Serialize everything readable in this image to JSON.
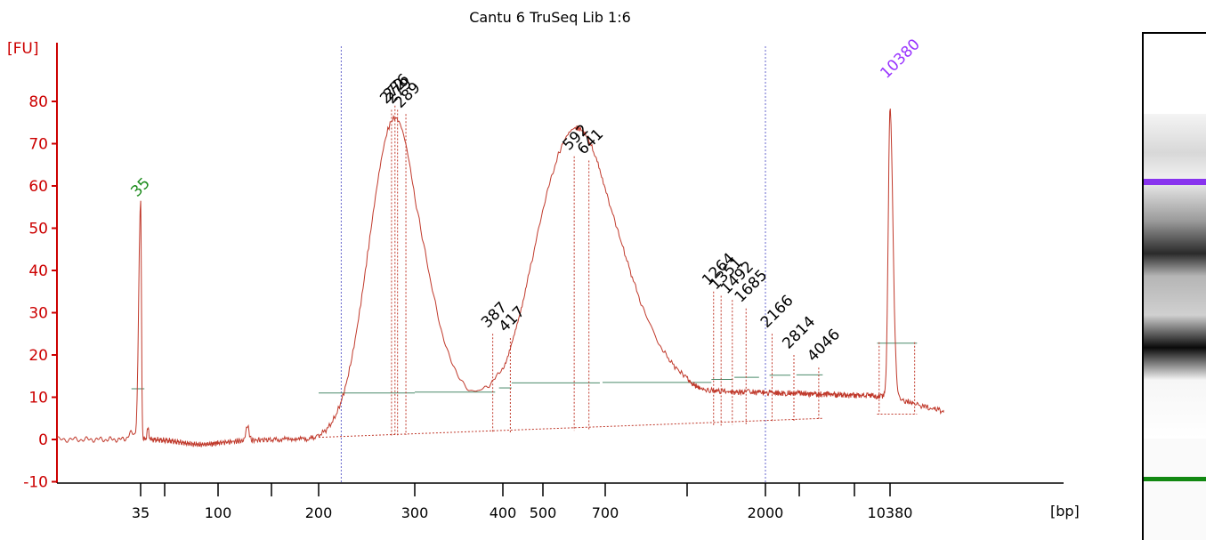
{
  "chart_data": {
    "type": "line",
    "title": "Cantu 6 TruSeq Lib 1:6",
    "ylabel": "[FU]",
    "xlabel": "[bp]",
    "ylim": [
      -10,
      90
    ],
    "y_ticks": [
      -10,
      0,
      10,
      20,
      30,
      40,
      50,
      60,
      70,
      80
    ],
    "x_tick_labels": [
      "35",
      "100",
      "200",
      "300",
      "400",
      "500",
      "700",
      "2000",
      "10380"
    ],
    "x_axis": "bp (nonlinear, ladder-calibrated)",
    "markers": [
      {
        "label": "35",
        "bp": 35,
        "fu": 56,
        "color": "#1a8a1a"
      },
      {
        "label": "10380",
        "bp": 10380,
        "fu": 84,
        "color": "#9933ff"
      }
    ],
    "peaks": [
      {
        "label": "272",
        "bp": 272,
        "fu": 78
      },
      {
        "label": "276",
        "bp": 276,
        "fu": 79
      },
      {
        "label": "279",
        "bp": 279,
        "fu": 78
      },
      {
        "label": "289",
        "bp": 289,
        "fu": 77
      },
      {
        "label": "387",
        "bp": 387,
        "fu": 25
      },
      {
        "label": "417",
        "bp": 417,
        "fu": 24
      },
      {
        "label": "592",
        "bp": 592,
        "fu": 67
      },
      {
        "label": "641",
        "bp": 641,
        "fu": 66
      },
      {
        "label": "1264",
        "bp": 1264,
        "fu": 35
      },
      {
        "label": "1351",
        "bp": 1351,
        "fu": 34
      },
      {
        "label": "1492",
        "bp": 1492,
        "fu": 33
      },
      {
        "label": "1685",
        "bp": 1685,
        "fu": 31
      },
      {
        "label": "2166",
        "bp": 2166,
        "fu": 25
      },
      {
        "label": "2814",
        "bp": 2814,
        "fu": 20
      },
      {
        "label": "4046",
        "bp": 4046,
        "fu": 17
      }
    ],
    "region_lines_bp": [
      220,
      2000
    ],
    "colors": {
      "axis": "#cc0000",
      "trace": "#c0392b",
      "baseline": "#4a8a6a",
      "region": "#6666cc"
    },
    "gel_bands": [
      {
        "label": "10380",
        "color": "#8833ee"
      },
      {
        "label": "35",
        "color": "#118811"
      }
    ]
  }
}
